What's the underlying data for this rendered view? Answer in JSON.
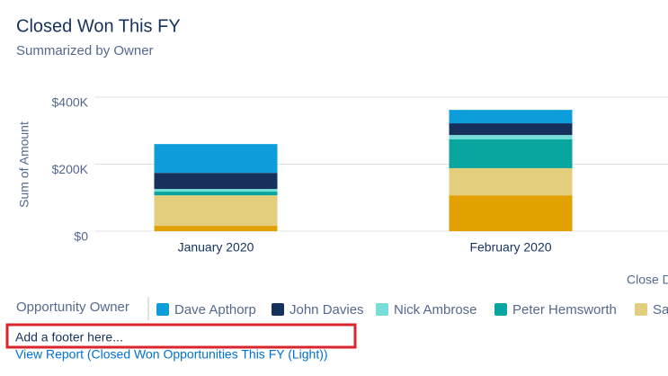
{
  "header": {
    "title": "Closed Won This FY",
    "subtitle": "Summarized by Owner"
  },
  "chart_data": {
    "type": "stacked_bar",
    "y_label": "Sum of Amount",
    "x_label": "Close D",
    "categories": [
      "January 2020",
      "February 2020"
    ],
    "legend_title": "Opportunity Owner",
    "series": [
      {
        "name": "Dave Apthorp",
        "color": "#0d9dda",
        "values": [
          86000,
          40000
        ]
      },
      {
        "name": "John Davies",
        "color": "#16325c",
        "values": [
          48000,
          35000
        ]
      },
      {
        "name": "Nick Ambrose",
        "color": "#76ded9",
        "values": [
          8000,
          13000
        ]
      },
      {
        "name": "Peter Hemsworth",
        "color": "#08a69e",
        "values": [
          11000,
          86000
        ]
      },
      {
        "name": "Sa",
        "color": "#e2ce7d",
        "values": [
          91000,
          81000
        ]
      },
      {
        "color": "#e3a100",
        "values": [
          16000,
          107000
        ]
      }
    ],
    "ylim": [
      0,
      400000
    ],
    "yticks": [
      {
        "value": 0,
        "label": "$0"
      },
      {
        "value": 200000,
        "label": "$200K"
      },
      {
        "value": 400000,
        "label": "$400K"
      }
    ],
    "grid": true
  },
  "footer": {
    "placeholder": "Add a footer here...",
    "link": "View Report (Closed Won Opportunities This FY (Light))"
  }
}
